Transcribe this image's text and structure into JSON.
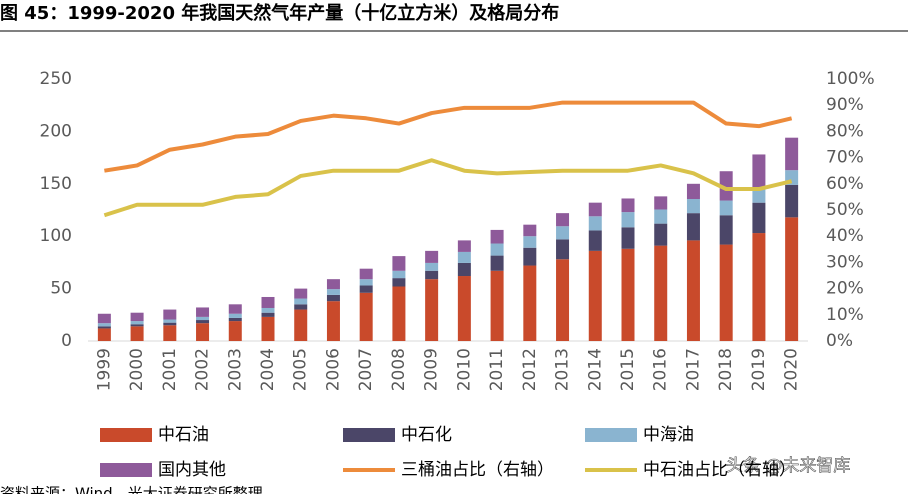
{
  "chart_data": {
    "type": "bar",
    "stacked": true,
    "title": "图 45：1999-2020 年我国天然气年产量（十亿立方米）及格局分布",
    "categories": [
      "1999",
      "2000",
      "2001",
      "2002",
      "2003",
      "2004",
      "2005",
      "2006",
      "2007",
      "2008",
      "2009",
      "2010",
      "2011",
      "2012",
      "2013",
      "2014",
      "2015",
      "2016",
      "2017",
      "2018",
      "2019",
      "2020"
    ],
    "series": [
      {
        "name": "中石油",
        "color": "#c94a2b",
        "values": [
          12,
          14,
          15,
          17,
          19,
          23,
          30,
          38,
          46,
          52,
          59,
          62,
          67,
          72,
          78,
          86,
          88,
          91,
          96,
          92,
          103,
          118
        ]
      },
      {
        "name": "中石化",
        "color": "#4b4668",
        "values": [
          2,
          2,
          2.5,
          3,
          3,
          4,
          5,
          6,
          7,
          8,
          8,
          12.5,
          14.5,
          17,
          19,
          19.5,
          20.5,
          21,
          26,
          28,
          29,
          31
        ]
      },
      {
        "name": "中海油",
        "color": "#8ab4d0",
        "values": [
          3,
          3,
          3,
          3,
          4,
          4.5,
          5.5,
          5.5,
          6,
          7,
          7.5,
          10.5,
          11.5,
          11,
          12.5,
          13.5,
          14.5,
          13.5,
          13.5,
          14,
          14,
          14
        ]
      },
      {
        "name": "国内其他",
        "color": "#8e5a9a",
        "values": [
          9,
          8,
          9.5,
          9,
          9,
          10.5,
          9.5,
          9.5,
          10,
          14,
          11.5,
          11,
          13,
          11,
          12.5,
          13,
          13,
          12.5,
          14.5,
          28,
          32,
          31
        ]
      },
      {
        "name": "三桶油占比（右轴）",
        "color": "#ed8b3b",
        "axis": "y2",
        "values": [
          65,
          67,
          73,
          75,
          78,
          79,
          84,
          86,
          85,
          83,
          87,
          89,
          89,
          89,
          91,
          91,
          91,
          91,
          91,
          83,
          82,
          85
        ]
      },
      {
        "name": "中石油占比（右轴）",
        "color": "#d9c24a",
        "axis": "y2",
        "values": [
          48,
          52,
          52,
          52,
          55,
          56,
          63,
          65,
          65,
          65,
          69,
          65,
          64,
          64.5,
          65,
          65,
          65,
          67,
          64,
          58,
          58,
          61
        ]
      }
    ],
    "ylim": [
      0,
      250
    ],
    "yticks": [
      0,
      50,
      100,
      150,
      200,
      250
    ],
    "y2lim": [
      0,
      100
    ],
    "y2ticks": [
      {
        "value": 0,
        "label": "0%"
      },
      {
        "value": 10,
        "label": "10%"
      },
      {
        "value": 20,
        "label": "20%"
      },
      {
        "value": 30,
        "label": "30%"
      },
      {
        "value": 40,
        "label": "40%"
      },
      {
        "value": 50,
        "label": "50%"
      },
      {
        "value": 60,
        "label": "60%"
      },
      {
        "value": 70,
        "label": "70%"
      },
      {
        "value": 80,
        "label": "80%"
      },
      {
        "value": 90,
        "label": "90%"
      },
      {
        "value": 100,
        "label": "100%"
      }
    ],
    "grid": false,
    "source": "资料来源：Wind，光大证券研究所整理",
    "watermark": "头条 @未来智库"
  }
}
